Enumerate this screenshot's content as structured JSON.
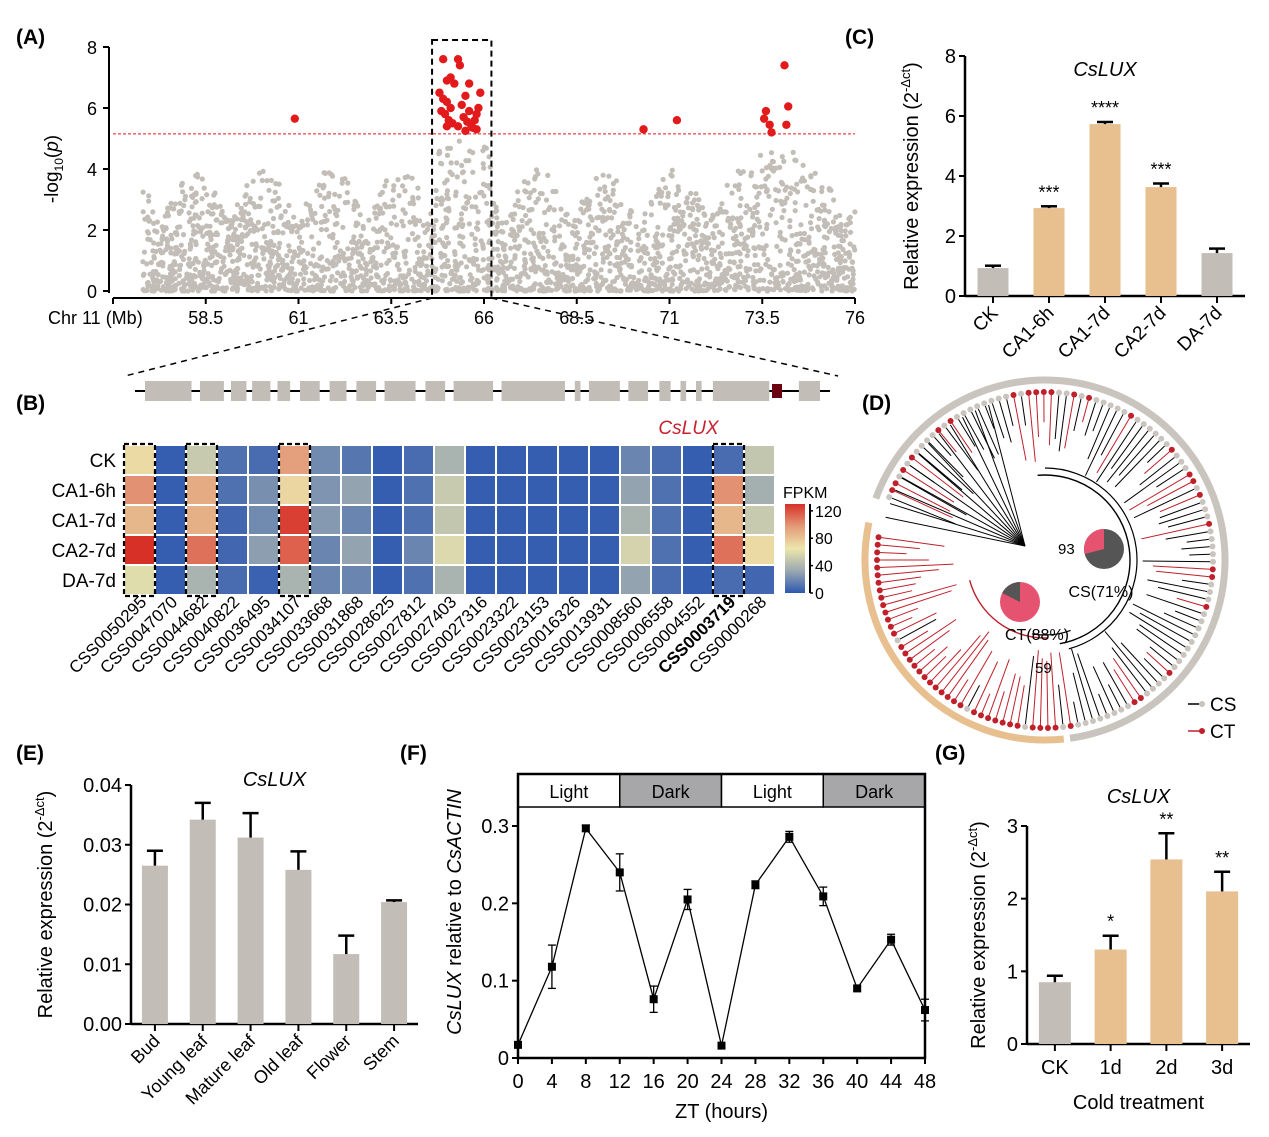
{
  "panel_labels": {
    "A": "(A)",
    "B": "(B)",
    "C": "(C)",
    "D": "(D)",
    "E": "(E)",
    "F": "(F)",
    "G": "(G)"
  },
  "colors": {
    "gray_bar": "#c2bdb6",
    "tan_bar": "#e8bf8e",
    "red_point": "#e31a1c",
    "threshold_line": "#e31a1c",
    "cslux_red": "#c8202e",
    "ct_branch": "#c0202a",
    "cs_branch": "#000000",
    "tree_outer_gray": "#c9c4bd",
    "tree_outer_tan": "#e8bf8e",
    "pie_dark": "#555555",
    "pie_pink": "#e55370",
    "gene_box": "#c2bdb6",
    "gene_box_highlight": "#6b0010",
    "light_box": "#ffffff",
    "dark_box": "#a7a7a9"
  },
  "chart_data": [
    {
      "id": "A",
      "type": "scatter",
      "title": "",
      "xlabel": "Chr 11 (Mb)",
      "ylabel": "-log10(p)",
      "ylabel_main": "-log",
      "ylabel_sub": "10",
      "ylabel_tail": "(p)",
      "xlim": [
        56,
        76
      ],
      "ylim": [
        0,
        8
      ],
      "xticks": [
        58.5,
        61,
        63.5,
        66,
        68.5,
        71,
        73.5,
        76
      ],
      "xtick_labels": [
        "58.5",
        "61",
        "63.5",
        "66",
        "68.5",
        "71",
        "73.5",
        "76"
      ],
      "yticks": [
        0,
        2,
        4,
        6,
        8
      ],
      "threshold": 5.15,
      "highlight_region": [
        64.6,
        66.2
      ],
      "significant_points": [
        [
          60.9,
          5.65
        ],
        [
          64.9,
          7.6
        ],
        [
          65.0,
          6.9
        ],
        [
          65.1,
          7.0
        ],
        [
          65.2,
          6.8
        ],
        [
          64.8,
          6.5
        ],
        [
          64.9,
          6.3
        ],
        [
          65.0,
          6.2
        ],
        [
          65.1,
          6.0
        ],
        [
          64.85,
          5.9
        ],
        [
          64.95,
          5.8
        ],
        [
          65.05,
          5.6
        ],
        [
          65.15,
          5.5
        ],
        [
          65.0,
          5.4
        ],
        [
          65.3,
          7.6
        ],
        [
          65.35,
          7.4
        ],
        [
          65.4,
          6.1
        ],
        [
          65.5,
          6.4
        ],
        [
          65.6,
          5.9
        ],
        [
          65.45,
          5.7
        ],
        [
          65.55,
          5.55
        ],
        [
          65.65,
          5.45
        ],
        [
          65.7,
          5.35
        ],
        [
          65.75,
          5.6
        ],
        [
          65.8,
          5.3
        ],
        [
          65.85,
          6.0
        ],
        [
          65.9,
          6.5
        ],
        [
          65.5,
          5.25
        ],
        [
          65.3,
          5.4
        ],
        [
          65.6,
          6.8
        ],
        [
          65.8,
          5.8
        ],
        [
          70.3,
          5.3
        ],
        [
          71.2,
          5.6
        ],
        [
          73.6,
          5.9
        ],
        [
          73.55,
          5.65
        ],
        [
          73.7,
          5.45
        ],
        [
          73.75,
          5.2
        ],
        [
          74.1,
          7.4
        ],
        [
          74.2,
          6.05
        ],
        [
          74.15,
          5.45
        ]
      ],
      "background_series_note": "dense gray points 0-5"
    },
    {
      "id": "B",
      "type": "heatmap",
      "rows": [
        "CK",
        "CA1-6h",
        "CA1-7d",
        "CA2-7d",
        "DA-7d"
      ],
      "columns": [
        "CSS0050295",
        "CSS0047070",
        "CSS0044682",
        "CSS0040822",
        "CSS0036495",
        "CSS0034107",
        "CSS0033668",
        "CSS0031868",
        "CSS0028625",
        "CSS0027812",
        "CSS0027403",
        "CSS0027316",
        "CSS0023322",
        "CSS0023153",
        "CSS0016326",
        "CSS0013931",
        "CSS0008560",
        "CSS0006558",
        "CSS0004552",
        "CSS0003719",
        "CSS0000268"
      ],
      "bold_column": "CSS0003719",
      "highlighted_gene_label": "CsLUX",
      "boxed_columns": [
        "CSS0050295",
        "CSS0044682",
        "CSS0034107",
        "CSS0003719"
      ],
      "values": [
        [
          70,
          2,
          50,
          10,
          8,
          95,
          20,
          12,
          2,
          8,
          38,
          2,
          2,
          2,
          2,
          2,
          18,
          8,
          2,
          8,
          48
        ],
        [
          100,
          2,
          90,
          10,
          22,
          72,
          24,
          30,
          2,
          10,
          50,
          2,
          2,
          2,
          2,
          2,
          30,
          10,
          2,
          100,
          36
        ],
        [
          85,
          2,
          88,
          6,
          20,
          125,
          26,
          18,
          2,
          10,
          48,
          2,
          2,
          2,
          2,
          2,
          38,
          10,
          2,
          85,
          50
        ],
        [
          135,
          2,
          110,
          6,
          28,
          115,
          18,
          30,
          2,
          18,
          58,
          2,
          2,
          2,
          2,
          2,
          55,
          10,
          2,
          110,
          70
        ],
        [
          60,
          2,
          38,
          8,
          4,
          38,
          18,
          18,
          2,
          10,
          38,
          2,
          2,
          2,
          2,
          2,
          30,
          8,
          2,
          8,
          6
        ]
      ],
      "colorbar": {
        "title": "FPKM",
        "ticks": [
          0,
          40,
          80,
          120
        ],
        "range": [
          0,
          130
        ],
        "stops": [
          "#2e58b0",
          "#9ba9b0",
          "#ede6ac",
          "#e39a78",
          "#d73027"
        ]
      }
    },
    {
      "id": "C",
      "type": "bar",
      "title": "CsLUX",
      "ylabel": "Relative expression (2",
      "ylabel_sup": "-Δct",
      "ylabel_close": ")",
      "categories": [
        "CK",
        "CA1-6h",
        "CA1-7d",
        "CA2-7d",
        "DA-7d"
      ],
      "values": [
        0.93,
        2.93,
        5.73,
        3.63,
        1.43
      ],
      "errors": [
        0.08,
        0.06,
        0.07,
        0.12,
        0.15
      ],
      "significance": [
        "",
        "***",
        "****",
        "***",
        ""
      ],
      "bar_colors": [
        "gray",
        "tan",
        "tan",
        "tan",
        "gray"
      ],
      "ylim": [
        0,
        8
      ],
      "yticks": [
        0,
        2,
        4,
        6,
        8
      ]
    },
    {
      "id": "D",
      "type": "tree",
      "bootstrap_labels": [
        "93",
        "59"
      ],
      "clades": [
        {
          "label": "CS(71%)",
          "cs_fraction": 0.71
        },
        {
          "label": "CT(88%)",
          "ct_fraction": 0.88
        }
      ],
      "legend": [
        {
          "label": "CS"
        },
        {
          "label": "CT"
        }
      ]
    },
    {
      "id": "E",
      "type": "bar",
      "title": "CsLUX",
      "ylabel": "Relative expression (2",
      "ylabel_sup": "-Δct",
      "ylabel_close": ")",
      "categories": [
        "Bud",
        "Young leaf",
        "Mature leaf",
        "Old leaf",
        "Flower",
        "Stem"
      ],
      "values": [
        0.0265,
        0.0342,
        0.0312,
        0.0258,
        0.0117,
        0.0204
      ],
      "errors": [
        0.0025,
        0.0028,
        0.0041,
        0.0031,
        0.0031,
        0.0003
      ],
      "ylim": [
        0,
        0.04
      ],
      "yticks": [
        0,
        0.01,
        0.02,
        0.03,
        0.04
      ],
      "ytick_labels": [
        "0.00",
        "0.01",
        "0.02",
        "0.03",
        "0.04"
      ]
    },
    {
      "id": "F",
      "type": "line",
      "xlabel": "ZT (hours)",
      "ylabel_italic": "CsLUX",
      "ylabel_mid": " relative to ",
      "ylabel_italic2": "CsACTIN",
      "x": [
        0,
        4,
        8,
        12,
        16,
        20,
        24,
        28,
        32,
        36,
        40,
        44,
        48
      ],
      "values": [
        0.017,
        0.118,
        0.297,
        0.24,
        0.076,
        0.205,
        0.016,
        0.224,
        0.286,
        0.209,
        0.09,
        0.153,
        0.062
      ],
      "errors": [
        0.003,
        0.028,
        0.004,
        0.024,
        0.017,
        0.013,
        0.002,
        0.005,
        0.007,
        0.012,
        0.003,
        0.007,
        0.014
      ],
      "xlim": [
        0,
        48
      ],
      "ylim": [
        0,
        0.3
      ],
      "yticks": [
        0,
        0.1,
        0.2,
        0.3
      ],
      "ytick_labels": [
        "0",
        "0.1",
        "0.2",
        "0.3"
      ],
      "photoperiod": [
        {
          "label": "Light",
          "from": 0,
          "to": 12,
          "type": "light"
        },
        {
          "label": "Dark",
          "from": 12,
          "to": 24,
          "type": "dark"
        },
        {
          "label": "Light",
          "from": 24,
          "to": 36,
          "type": "light"
        },
        {
          "label": "Dark",
          "from": 36,
          "to": 48,
          "type": "dark"
        }
      ]
    },
    {
      "id": "G",
      "type": "bar",
      "title": "CsLUX",
      "xlabel": "Cold treatment",
      "ylabel": "Relative expression (2",
      "ylabel_sup": "-Δct",
      "ylabel_close": ")",
      "categories": [
        "CK",
        "1d",
        "2d",
        "3d"
      ],
      "values": [
        0.85,
        1.3,
        2.54,
        2.1
      ],
      "errors": [
        0.09,
        0.19,
        0.36,
        0.27
      ],
      "significance": [
        "",
        "*",
        "**",
        "**"
      ],
      "bar_colors": [
        "gray",
        "tan",
        "tan",
        "tan"
      ],
      "ylim": [
        0,
        3
      ],
      "yticks": [
        0,
        1,
        2,
        3
      ]
    }
  ]
}
